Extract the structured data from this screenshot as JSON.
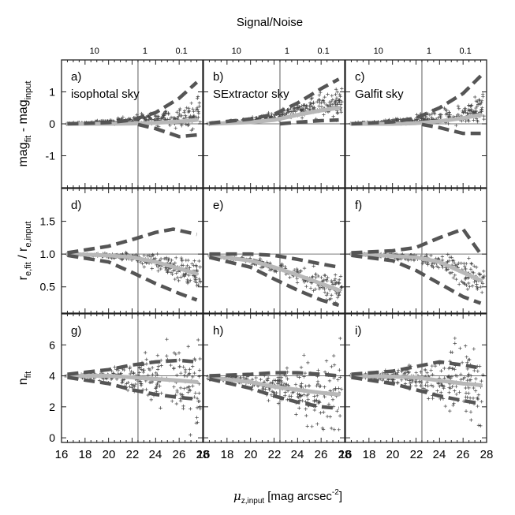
{
  "figure": {
    "top_title": "Signal/Noise",
    "xlabel": {
      "symbol": "μ",
      "sub": "z,input",
      "unit": "[mag arcsec",
      "sup": "-2",
      "close": "]"
    },
    "row_labels": [
      {
        "main": "mag",
        "sub1": "fit",
        "mid": " - mag",
        "sub2": "input"
      },
      {
        "main": "r",
        "sub1": "e,fit",
        "mid": " / r",
        "sub2": "e,input"
      },
      {
        "main": "n",
        "sub1": "fit",
        "mid": "",
        "sub2": ""
      }
    ],
    "sn_ticks": [
      {
        "label": "10",
        "x": 18.8
      },
      {
        "label": "1",
        "x": 23.1
      },
      {
        "label": "0.1",
        "x": 26.2
      }
    ]
  },
  "chart_data": {
    "type": "scatter",
    "x_range": [
      16,
      28
    ],
    "x_ticks": [
      16,
      18,
      20,
      22,
      24,
      26,
      28
    ],
    "x_tick_labels": [
      "16",
      "18",
      "20",
      "22",
      "24",
      "26",
      "28"
    ],
    "vertical_line_x": 22.5,
    "rows": [
      {
        "ylim": [
          -2.0,
          2.0
        ],
        "yticks": [
          -1,
          0,
          1
        ],
        "ytick_labels": [
          "-1",
          "0",
          "1"
        ],
        "hline": 0
      },
      {
        "ylim": [
          0.1,
          2.0
        ],
        "yticks": [
          0.5,
          1.0,
          1.5
        ],
        "ytick_labels": [
          "0.5",
          "1.0",
          "1.5"
        ],
        "hline": 1.0
      },
      {
        "ylim": [
          -0.3,
          8.0
        ],
        "yticks": [
          0,
          2,
          4,
          6
        ],
        "ytick_labels": [
          "0",
          "2",
          "4",
          "6"
        ],
        "hline": 4.0
      }
    ],
    "columns": [
      "isophotal sky",
      "SExtractor sky",
      "Galfit sky"
    ],
    "panels": [
      {
        "label": "a)",
        "sky": "isophotal sky",
        "row": 0,
        "col": 0,
        "median": [
          [
            16.5,
            0.0
          ],
          [
            20,
            0.0
          ],
          [
            22,
            0.01
          ],
          [
            24,
            0.03
          ],
          [
            26,
            0.07
          ],
          [
            27.5,
            0.12
          ]
        ],
        "upper": [
          [
            16.5,
            0.0
          ],
          [
            20,
            0.04
          ],
          [
            22,
            0.12
          ],
          [
            24,
            0.35
          ],
          [
            26,
            0.8
          ],
          [
            27.5,
            1.3
          ]
        ],
        "lower": [
          [
            22.5,
            -0.02
          ],
          [
            24,
            -0.15
          ],
          [
            26,
            -0.4
          ],
          [
            27.5,
            -0.35
          ]
        ]
      },
      {
        "label": "b)",
        "sky": "SExtractor sky",
        "row": 0,
        "col": 1,
        "median": [
          [
            16.5,
            0.0
          ],
          [
            20,
            0.05
          ],
          [
            22,
            0.12
          ],
          [
            24,
            0.28
          ],
          [
            26,
            0.42
          ],
          [
            27.5,
            0.5
          ]
        ],
        "upper": [
          [
            16.5,
            0.02
          ],
          [
            20,
            0.15
          ],
          [
            22,
            0.3
          ],
          [
            24,
            0.65
          ],
          [
            26,
            1.1
          ],
          [
            27.5,
            1.4
          ]
        ],
        "lower": [
          [
            22.5,
            0.0
          ],
          [
            24,
            0.05
          ],
          [
            26,
            0.1
          ],
          [
            27.5,
            0.12
          ]
        ]
      },
      {
        "label": "c)",
        "sky": "Galfit sky",
        "row": 0,
        "col": 2,
        "median": [
          [
            16.5,
            0.0
          ],
          [
            20,
            0.0
          ],
          [
            22,
            0.02
          ],
          [
            24,
            0.08
          ],
          [
            26,
            0.18
          ],
          [
            27.5,
            0.28
          ]
        ],
        "upper": [
          [
            16.5,
            0.0
          ],
          [
            20,
            0.06
          ],
          [
            22,
            0.18
          ],
          [
            24,
            0.5
          ],
          [
            26,
            0.95
          ],
          [
            27.5,
            1.5
          ]
        ],
        "lower": [
          [
            22.5,
            -0.02
          ],
          [
            24,
            -0.12
          ],
          [
            26,
            -0.3
          ],
          [
            27.5,
            -0.3
          ]
        ]
      },
      {
        "label": "d)",
        "sky": "isophotal sky",
        "row": 1,
        "col": 0,
        "median": [
          [
            16.5,
            1.0
          ],
          [
            20,
            0.98
          ],
          [
            22,
            0.95
          ],
          [
            24,
            0.88
          ],
          [
            26,
            0.78
          ],
          [
            27.5,
            0.7
          ]
        ],
        "upper": [
          [
            16.5,
            1.02
          ],
          [
            20,
            1.12
          ],
          [
            22,
            1.22
          ],
          [
            24,
            1.33
          ],
          [
            25.5,
            1.38
          ],
          [
            27.5,
            1.3
          ]
        ],
        "lower": [
          [
            16.5,
            0.98
          ],
          [
            20,
            0.88
          ],
          [
            22,
            0.72
          ],
          [
            24,
            0.55
          ],
          [
            26,
            0.4
          ],
          [
            27.5,
            0.3
          ]
        ]
      },
      {
        "label": "e)",
        "sky": "SExtractor sky",
        "row": 1,
        "col": 1,
        "median": [
          [
            16.5,
            0.98
          ],
          [
            20,
            0.9
          ],
          [
            22,
            0.8
          ],
          [
            24,
            0.68
          ],
          [
            26,
            0.55
          ],
          [
            27.5,
            0.45
          ]
        ],
        "upper": [
          [
            16.5,
            1.0
          ],
          [
            20,
            1.0
          ],
          [
            22,
            0.98
          ],
          [
            24,
            0.92
          ],
          [
            26,
            0.85
          ],
          [
            27.5,
            0.8
          ]
        ],
        "lower": [
          [
            16.5,
            0.95
          ],
          [
            20,
            0.8
          ],
          [
            22,
            0.62
          ],
          [
            24,
            0.45
          ],
          [
            26,
            0.3
          ],
          [
            27.5,
            0.22
          ]
        ]
      },
      {
        "label": "f)",
        "sky": "Galfit sky",
        "row": 1,
        "col": 2,
        "median": [
          [
            16.5,
            1.0
          ],
          [
            20,
            0.97
          ],
          [
            22,
            0.95
          ],
          [
            24,
            0.88
          ],
          [
            26,
            0.72
          ],
          [
            27.5,
            0.6
          ]
        ],
        "upper": [
          [
            16.5,
            1.02
          ],
          [
            20,
            1.05
          ],
          [
            22,
            1.1
          ],
          [
            24,
            1.25
          ],
          [
            26,
            1.38
          ],
          [
            27.5,
            1.0
          ]
        ],
        "lower": [
          [
            16.5,
            0.98
          ],
          [
            20,
            0.9
          ],
          [
            22,
            0.75
          ],
          [
            24,
            0.55
          ],
          [
            26,
            0.35
          ],
          [
            27.5,
            0.25
          ]
        ]
      },
      {
        "label": "g)",
        "sky": "isophotal sky",
        "row": 2,
        "col": 0,
        "median": [
          [
            16.5,
            4.0
          ],
          [
            20,
            4.0
          ],
          [
            22,
            3.9
          ],
          [
            24,
            3.8
          ],
          [
            26,
            3.7
          ],
          [
            27.5,
            3.6
          ]
        ],
        "upper": [
          [
            16.5,
            4.1
          ],
          [
            20,
            4.4
          ],
          [
            22,
            4.7
          ],
          [
            24,
            4.9
          ],
          [
            26,
            5.0
          ],
          [
            27.5,
            4.9
          ]
        ],
        "lower": [
          [
            16.5,
            3.9
          ],
          [
            20,
            3.5
          ],
          [
            22,
            3.1
          ],
          [
            24,
            2.8
          ],
          [
            26,
            2.6
          ],
          [
            27.5,
            2.5
          ]
        ]
      },
      {
        "label": "h)",
        "sky": "SExtractor sky",
        "row": 2,
        "col": 1,
        "median": [
          [
            16.5,
            3.9
          ],
          [
            20,
            3.6
          ],
          [
            22,
            3.3
          ],
          [
            24,
            3.1
          ],
          [
            26,
            2.9
          ],
          [
            27.5,
            2.8
          ]
        ],
        "upper": [
          [
            16.5,
            4.0
          ],
          [
            20,
            4.1
          ],
          [
            22,
            4.2
          ],
          [
            24,
            4.2
          ],
          [
            26,
            4.1
          ],
          [
            27.5,
            4.0
          ]
        ],
        "lower": [
          [
            16.5,
            3.8
          ],
          [
            20,
            3.2
          ],
          [
            22,
            2.7
          ],
          [
            24,
            2.3
          ],
          [
            26,
            2.0
          ],
          [
            27.5,
            1.9
          ]
        ]
      },
      {
        "label": "i)",
        "sky": "Galfit sky",
        "row": 2,
        "col": 2,
        "median": [
          [
            16.5,
            4.0
          ],
          [
            20,
            3.95
          ],
          [
            22,
            3.9
          ],
          [
            24,
            3.7
          ],
          [
            26,
            3.5
          ],
          [
            27.5,
            3.4
          ]
        ],
        "upper": [
          [
            16.5,
            4.1
          ],
          [
            20,
            4.3
          ],
          [
            22,
            4.6
          ],
          [
            24,
            4.9
          ],
          [
            26,
            4.7
          ],
          [
            27.5,
            4.5
          ]
        ],
        "lower": [
          [
            16.5,
            3.9
          ],
          [
            20,
            3.5
          ],
          [
            22,
            3.1
          ],
          [
            24,
            2.7
          ],
          [
            26,
            2.4
          ],
          [
            27.5,
            2.2
          ]
        ]
      }
    ],
    "scatter_spread": [
      0.15,
      0.18,
      1.0
    ],
    "colors": {
      "points": "#444444",
      "median": "#b8b8b8",
      "bounds": "#555555",
      "lines": "#555555"
    }
  }
}
